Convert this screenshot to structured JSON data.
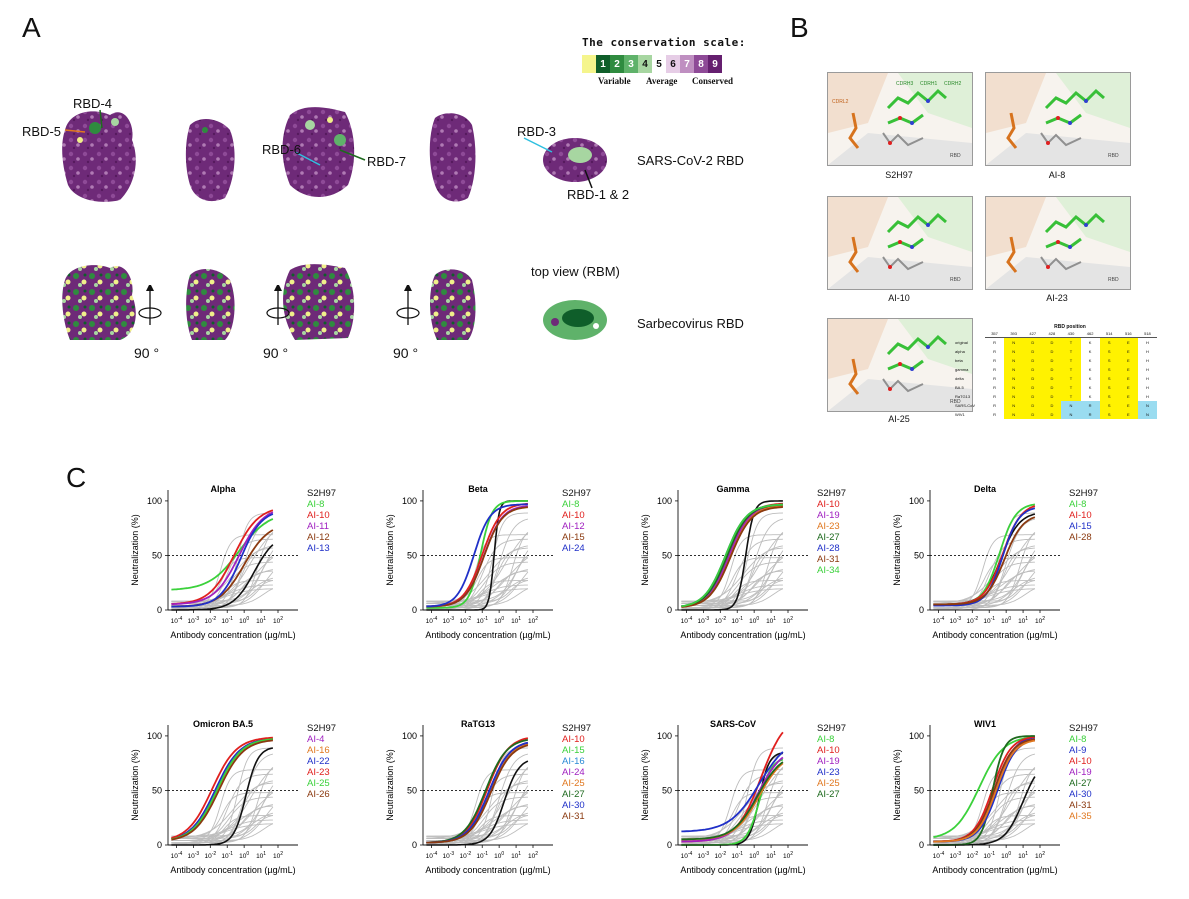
{
  "panels": {
    "a": "A",
    "b": "B",
    "c": "C"
  },
  "conservation_scale": {
    "title": "The conservation scale:",
    "grades": [
      "1",
      "2",
      "3",
      "4",
      "5",
      "6",
      "7",
      "8",
      "9"
    ],
    "grade_colors": [
      "#0f5e2a",
      "#2f8b3f",
      "#5fb26a",
      "#a7d6a1",
      "#ffffff",
      "#e6cde6",
      "#bf8fc1",
      "#8e4a97",
      "#651f6f"
    ],
    "insufficient_color": "#f5f58c",
    "variable": "Variable",
    "average": "Average",
    "conserved": "Conserved"
  },
  "panel_a": {
    "labels": {
      "rbd4": "RBD-4",
      "rbd5": "RBD-5",
      "rbd6": "RBD-6",
      "rbd7": "RBD-7",
      "rbd3": "RBD-3",
      "rbd12": "RBD-1 & 2",
      "sars2": "SARS-CoV-2 RBD",
      "topview": "top view (RBM)",
      "sarbeco": "Sarbecovirus RBD",
      "rot": "90 °"
    }
  },
  "panel_b": {
    "captions": [
      "S2H97",
      "AI-8",
      "AI-10",
      "AI-23",
      "AI-25"
    ],
    "residue_labels": {
      "cdrh3": "CDRH3",
      "cdrh1": "CDRH1",
      "cdrh2": "CDRH2",
      "cdrl2": "CDRL2",
      "rbd": "RBD"
    },
    "table_title": "RBD position",
    "table_cols": [
      "357",
      "393",
      "427",
      "428",
      "430",
      "462",
      "514",
      "516",
      "518"
    ],
    "table_rows": [
      {
        "name": "original",
        "cells": [
          "R",
          "N",
          "D",
          "D",
          "T",
          "K",
          "S",
          "E",
          "H"
        ]
      },
      {
        "name": "alpha",
        "cells": [
          "R",
          "N",
          "D",
          "D",
          "T",
          "K",
          "S",
          "E",
          "H"
        ]
      },
      {
        "name": "beta",
        "cells": [
          "R",
          "N",
          "D",
          "D",
          "T",
          "K",
          "S",
          "E",
          "H"
        ]
      },
      {
        "name": "gamma",
        "cells": [
          "R",
          "N",
          "D",
          "D",
          "T",
          "K",
          "S",
          "E",
          "H"
        ]
      },
      {
        "name": "delta",
        "cells": [
          "R",
          "N",
          "D",
          "D",
          "T",
          "K",
          "S",
          "E",
          "H"
        ]
      },
      {
        "name": "BA.5",
        "cells": [
          "R",
          "N",
          "D",
          "D",
          "T",
          "K",
          "S",
          "E",
          "H"
        ]
      },
      {
        "name": "RaTG13",
        "cells": [
          "R",
          "N",
          "D",
          "D",
          "T",
          "K",
          "S",
          "E",
          "H"
        ]
      },
      {
        "name": "SARS-CoV",
        "cells": [
          "R",
          "N",
          "D",
          "D",
          "N",
          "R",
          "S",
          "E",
          "N"
        ]
      },
      {
        "name": "WIV1",
        "cells": [
          "R",
          "N",
          "D",
          "D",
          "N",
          "R",
          "S",
          "E",
          "N"
        ]
      }
    ]
  },
  "chart_common": {
    "ylabel": "Neutralization (%)",
    "xlabel": "Antibody concentration (µg/mL)",
    "yticks": [
      "0",
      "50",
      "100"
    ],
    "xticks": [
      "-4",
      "-3",
      "-2",
      "-1",
      "0",
      "1",
      "2"
    ],
    "dashed_level": 50
  },
  "chart_data": [
    {
      "type": "line",
      "title": "Alpha",
      "legend": [
        "S2H97",
        "AI-8",
        "AI-10",
        "AI-11",
        "AI-12",
        "AI-13"
      ],
      "legend_colors": [
        "#111111",
        "#3bd13b",
        "#e0201e",
        "#a020c0",
        "#8b3a10",
        "#2030c8"
      ],
      "curves": [
        {
          "name": "S2H97",
          "color": "#111111",
          "bottom": 0,
          "top": 70,
          "logEC50": 0.6,
          "hill": 0.7
        },
        {
          "name": "AI-8",
          "color": "#3bd13b",
          "bottom": 18,
          "top": 90,
          "logEC50": -0.3,
          "hill": 0.5
        },
        {
          "name": "AI-10",
          "color": "#e0201e",
          "bottom": 5,
          "top": 95,
          "logEC50": -0.6,
          "hill": 0.6
        },
        {
          "name": "AI-11",
          "color": "#a020c0",
          "bottom": 5,
          "top": 95,
          "logEC50": -0.3,
          "hill": 0.6
        },
        {
          "name": "AI-12",
          "color": "#8b3a10",
          "bottom": 3,
          "top": 80,
          "logEC50": 0.0,
          "hill": 0.6
        },
        {
          "name": "AI-13",
          "color": "#2030c8",
          "bottom": 3,
          "top": 92,
          "logEC50": -0.2,
          "hill": 0.7
        }
      ]
    },
    {
      "type": "line",
      "title": "Beta",
      "legend": [
        "S2H97",
        "AI-8",
        "AI-10",
        "AI-12",
        "AI-15",
        "AI-24"
      ],
      "legend_colors": [
        "#111111",
        "#3bd13b",
        "#e0201e",
        "#a020c0",
        "#8b3a10",
        "#2030c8"
      ],
      "curves": [
        {
          "name": "S2H97",
          "color": "#111111",
          "bottom": 0,
          "top": 100,
          "logEC50": -0.3,
          "hill": 3.0
        },
        {
          "name": "AI-8",
          "color": "#3bd13b",
          "bottom": 2,
          "top": 100,
          "logEC50": -1.1,
          "hill": 1.3
        },
        {
          "name": "AI-10",
          "color": "#e0201e",
          "bottom": 3,
          "top": 98,
          "logEC50": -1.0,
          "hill": 0.8
        },
        {
          "name": "AI-12",
          "color": "#a020c0",
          "bottom": 3,
          "top": 96,
          "logEC50": -0.9,
          "hill": 0.8
        },
        {
          "name": "AI-15",
          "color": "#8b3a10",
          "bottom": 3,
          "top": 95,
          "logEC50": -0.9,
          "hill": 0.8
        },
        {
          "name": "AI-24",
          "color": "#2030c8",
          "bottom": 3,
          "top": 97,
          "logEC50": -1.5,
          "hill": 0.9
        }
      ]
    },
    {
      "type": "line",
      "title": "Gamma",
      "legend": [
        "S2H97",
        "AI-10",
        "AI-19",
        "AI-23",
        "AI-27",
        "AI-28",
        "AI-31",
        "AI-34"
      ],
      "legend_colors": [
        "#111111",
        "#e0201e",
        "#a020c0",
        "#e07820",
        "#1e6a1e",
        "#2030c8",
        "#8b3a10",
        "#3bd13b"
      ],
      "curves": [
        {
          "name": "S2H97",
          "color": "#111111",
          "bottom": 0,
          "top": 100,
          "logEC50": -0.5,
          "hill": 1.8
        },
        {
          "name": "AI-10",
          "color": "#e0201e",
          "bottom": 2,
          "top": 98,
          "logEC50": -1.5,
          "hill": 0.7
        },
        {
          "name": "AI-19",
          "color": "#a020c0",
          "bottom": 2,
          "top": 96,
          "logEC50": -1.5,
          "hill": 0.7
        },
        {
          "name": "AI-23",
          "color": "#e07820",
          "bottom": 2,
          "top": 96,
          "logEC50": -1.4,
          "hill": 0.7
        },
        {
          "name": "AI-27",
          "color": "#1e6a1e",
          "bottom": 2,
          "top": 97,
          "logEC50": -1.6,
          "hill": 0.7
        },
        {
          "name": "AI-28",
          "color": "#2030c8",
          "bottom": 2,
          "top": 97,
          "logEC50": -1.7,
          "hill": 0.7
        },
        {
          "name": "AI-31",
          "color": "#8b3a10",
          "bottom": 2,
          "top": 95,
          "logEC50": -1.4,
          "hill": 0.7
        },
        {
          "name": "AI-34",
          "color": "#3bd13b",
          "bottom": 2,
          "top": 97,
          "logEC50": -1.7,
          "hill": 0.7
        }
      ]
    },
    {
      "type": "line",
      "title": "Delta",
      "legend": [
        "S2H97",
        "AI-8",
        "AI-10",
        "AI-15",
        "AI-28"
      ],
      "legend_colors": [
        "#111111",
        "#3bd13b",
        "#e0201e",
        "#2030c8",
        "#8b3a10"
      ],
      "curves": [
        {
          "name": "S2H97",
          "color": "#111111",
          "bottom": 5,
          "top": 90,
          "logEC50": -0.3,
          "hill": 0.8
        },
        {
          "name": "AI-8",
          "color": "#3bd13b",
          "bottom": 5,
          "top": 98,
          "logEC50": -0.4,
          "hill": 0.9
        },
        {
          "name": "AI-10",
          "color": "#e0201e",
          "bottom": 5,
          "top": 98,
          "logEC50": -0.2,
          "hill": 0.8
        },
        {
          "name": "AI-15",
          "color": "#2030c8",
          "bottom": 4,
          "top": 95,
          "logEC50": -0.2,
          "hill": 0.9
        },
        {
          "name": "AI-28",
          "color": "#8b3a10",
          "bottom": 5,
          "top": 88,
          "logEC50": -0.1,
          "hill": 0.8
        }
      ]
    },
    {
      "type": "line",
      "title": "Omicron BA.5",
      "legend": [
        "S2H97",
        "AI-4",
        "AI-16",
        "AI-22",
        "AI-23",
        "AI-25",
        "AI-26"
      ],
      "legend_colors": [
        "#111111",
        "#a020c0",
        "#e07820",
        "#2030c8",
        "#e0201e",
        "#3bd13b",
        "#8b3a10"
      ],
      "curves": [
        {
          "name": "S2H97",
          "color": "#111111",
          "bottom": 0,
          "top": 90,
          "logEC50": 0.1,
          "hill": 1.2
        },
        {
          "name": "AI-4",
          "color": "#a020c0",
          "bottom": 3,
          "top": 98,
          "logEC50": -1.7,
          "hill": 0.6
        },
        {
          "name": "AI-16",
          "color": "#e07820",
          "bottom": 3,
          "top": 98,
          "logEC50": -1.6,
          "hill": 0.6
        },
        {
          "name": "AI-22",
          "color": "#2030c8",
          "bottom": 3,
          "top": 98,
          "logEC50": -1.7,
          "hill": 0.6
        },
        {
          "name": "AI-23",
          "color": "#e0201e",
          "bottom": 3,
          "top": 99,
          "logEC50": -1.9,
          "hill": 0.6
        },
        {
          "name": "AI-25",
          "color": "#3bd13b",
          "bottom": 3,
          "top": 98,
          "logEC50": -1.6,
          "hill": 0.6
        },
        {
          "name": "AI-26",
          "color": "#8b3a10",
          "bottom": 3,
          "top": 97,
          "logEC50": -1.5,
          "hill": 0.6
        }
      ]
    },
    {
      "type": "line",
      "title": "RaTG13",
      "legend": [
        "S2H97",
        "AI-10",
        "AI-15",
        "AI-16",
        "AI-24",
        "AI-25",
        "AI-27",
        "AI-30",
        "AI-31"
      ],
      "legend_colors": [
        "#111111",
        "#e0201e",
        "#3bd13b",
        "#2a8ad6",
        "#a020c0",
        "#e07820",
        "#1e6a1e",
        "#2030c8",
        "#8b3a10"
      ],
      "curves": [
        {
          "name": "S2H97",
          "color": "#111111",
          "bottom": 0,
          "top": 80,
          "logEC50": 0.3,
          "hill": 1.0
        },
        {
          "name": "AI-10",
          "color": "#e0201e",
          "bottom": 2,
          "top": 100,
          "logEC50": -0.7,
          "hill": 0.7
        },
        {
          "name": "AI-15",
          "color": "#3bd13b",
          "bottom": 2,
          "top": 96,
          "logEC50": -0.6,
          "hill": 0.7
        },
        {
          "name": "AI-16",
          "color": "#2a8ad6",
          "bottom": 2,
          "top": 95,
          "logEC50": -0.5,
          "hill": 0.7
        },
        {
          "name": "AI-24",
          "color": "#a020c0",
          "bottom": 2,
          "top": 96,
          "logEC50": -0.6,
          "hill": 0.7
        },
        {
          "name": "AI-25",
          "color": "#e07820",
          "bottom": 2,
          "top": 95,
          "logEC50": -0.5,
          "hill": 0.7
        },
        {
          "name": "AI-27",
          "color": "#1e6a1e",
          "bottom": 2,
          "top": 98,
          "logEC50": -0.8,
          "hill": 0.7
        },
        {
          "name": "AI-30",
          "color": "#2030c8",
          "bottom": 2,
          "top": 96,
          "logEC50": -0.6,
          "hill": 0.7
        },
        {
          "name": "AI-31",
          "color": "#8b3a10",
          "bottom": 2,
          "top": 94,
          "logEC50": -0.5,
          "hill": 0.7
        }
      ]
    },
    {
      "type": "line",
      "title": "SARS-CoV",
      "legend": [
        "S2H97",
        "AI-8",
        "AI-10",
        "AI-19",
        "AI-23",
        "AI-25",
        "AI-27"
      ],
      "legend_colors": [
        "#111111",
        "#3bd13b",
        "#e0201e",
        "#a020c0",
        "#2030c8",
        "#e07820",
        "#1e6a1e"
      ],
      "curves": [
        {
          "name": "S2H97",
          "color": "#111111",
          "bottom": 0,
          "top": 85,
          "logEC50": 0.3,
          "hill": 1.5
        },
        {
          "name": "AI-8",
          "color": "#3bd13b",
          "bottom": 0,
          "top": 80,
          "logEC50": 0.3,
          "hill": 1.2
        },
        {
          "name": "AI-10",
          "color": "#e0201e",
          "bottom": 3,
          "top": 120,
          "logEC50": 0.4,
          "hill": 0.6
        },
        {
          "name": "AI-19",
          "color": "#a020c0",
          "bottom": 3,
          "top": 90,
          "logEC50": 0.2,
          "hill": 0.6
        },
        {
          "name": "AI-23",
          "color": "#2030c8",
          "bottom": 12,
          "top": 100,
          "logEC50": 0.3,
          "hill": 0.5
        },
        {
          "name": "AI-25",
          "color": "#e07820",
          "bottom": 5,
          "top": 85,
          "logEC50": 0.3,
          "hill": 0.6
        },
        {
          "name": "AI-27",
          "color": "#1e6a1e",
          "bottom": 5,
          "top": 85,
          "logEC50": 0.2,
          "hill": 0.6
        }
      ]
    },
    {
      "type": "line",
      "title": "WIV1",
      "legend": [
        "S2H97",
        "AI-8",
        "AI-9",
        "AI-10",
        "AI-19",
        "AI-27",
        "AI-30",
        "AI-31",
        "AI-35"
      ],
      "legend_colors": [
        "#111111",
        "#3bd13b",
        "#2030c8",
        "#e0201e",
        "#a020c0",
        "#1e6a1e",
        "#2030c8",
        "#8b3a10",
        "#e07820"
      ],
      "curves": [
        {
          "name": "S2H97",
          "color": "#111111",
          "bottom": 0,
          "top": 80,
          "logEC50": 1.0,
          "hill": 0.8
        },
        {
          "name": "AI-8",
          "color": "#3bd13b",
          "bottom": 5,
          "top": 100,
          "logEC50": -1.6,
          "hill": 0.6
        },
        {
          "name": "AI-9",
          "color": "#2030c8",
          "bottom": 3,
          "top": 100,
          "logEC50": -0.6,
          "hill": 0.8
        },
        {
          "name": "AI-10",
          "color": "#e0201e",
          "bottom": 3,
          "top": 100,
          "logEC50": -0.8,
          "hill": 0.8
        },
        {
          "name": "AI-19",
          "color": "#a020c0",
          "bottom": 3,
          "top": 98,
          "logEC50": -0.7,
          "hill": 0.8
        },
        {
          "name": "AI-27",
          "color": "#1e6a1e",
          "bottom": 0,
          "top": 100,
          "logEC50": -0.8,
          "hill": 1.3
        },
        {
          "name": "AI-30",
          "color": "#2030c8",
          "bottom": 3,
          "top": 98,
          "logEC50": -0.5,
          "hill": 0.8
        },
        {
          "name": "AI-31",
          "color": "#8b3a10",
          "bottom": 3,
          "top": 98,
          "logEC50": -0.7,
          "hill": 0.8
        },
        {
          "name": "AI-35",
          "color": "#e07820",
          "bottom": 3,
          "top": 97,
          "logEC50": -0.6,
          "hill": 0.8
        }
      ]
    }
  ]
}
